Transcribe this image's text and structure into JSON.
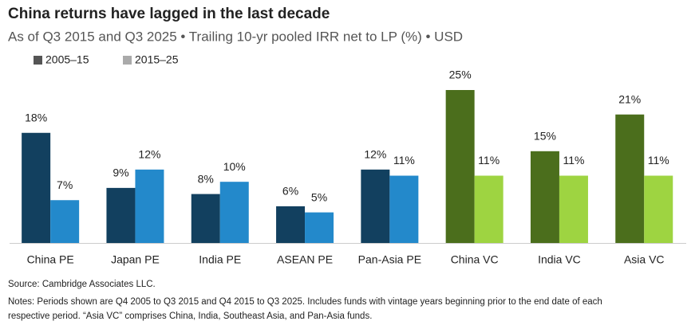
{
  "chart_data": {
    "type": "bar",
    "title": "China returns have lagged in the last decade",
    "subtitle": "As of Q3 2015 and Q3 2025 • Trailing 10-yr pooled IRR net to LP (%) • USD",
    "categories": [
      "China PE",
      "Japan PE",
      "India PE",
      "ASEAN PE",
      "Pan-Asia PE",
      "China VC",
      "India VC",
      "Asia VC"
    ],
    "series": [
      {
        "name": "2005–15",
        "color": "#555555",
        "colors": [
          "#12405f",
          "#12405f",
          "#12405f",
          "#12405f",
          "#12405f",
          "#4b6e1c",
          "#4b6e1c",
          "#4b6e1c"
        ],
        "values": [
          18,
          9,
          8,
          6,
          12,
          25,
          15,
          21
        ],
        "value_labels": [
          "18%",
          "9%",
          "8%",
          "6%",
          "12%",
          "25%",
          "15%",
          "21%"
        ]
      },
      {
        "name": "2015–25",
        "color": "#aaaaaa",
        "colors": [
          "#2389cb",
          "#2389cb",
          "#2389cb",
          "#2389cb",
          "#2389cb",
          "#9ed441",
          "#9ed441",
          "#9ed441"
        ],
        "values": [
          7,
          12,
          10,
          5,
          11,
          11,
          11,
          11
        ],
        "value_labels": [
          "7%",
          "12%",
          "10%",
          "5%",
          "11%",
          "11%",
          "11%",
          "11%"
        ]
      }
    ],
    "source": "Source: Cambridge Associates LLC.",
    "notes": [
      "Notes: Periods shown are Q4 2005 to Q3 2015 and Q4 2015 to Q3 2025. Includes funds with vintage years beginning prior to the end date of each",
      "respective period. “Asia VC” comprises China, India, Southeast Asia, and Pan-Asia funds."
    ]
  }
}
